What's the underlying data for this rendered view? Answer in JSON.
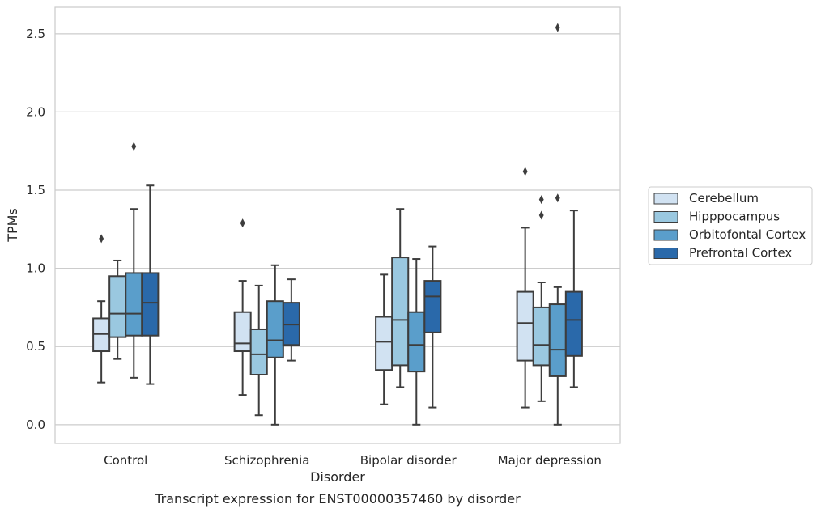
{
  "chart_data": {
    "type": "box",
    "title": "",
    "caption": "Transcript expression for ENST00000357460 by disorder",
    "xlabel": "Disorder",
    "ylabel": "TPMs",
    "ylim": [
      -0.12,
      2.67
    ],
    "yticks": [
      0.0,
      0.5,
      1.0,
      1.5,
      2.0,
      2.5
    ],
    "ytick_labels": [
      "0.0",
      "0.5",
      "1.0",
      "1.5",
      "2.0",
      "2.5"
    ],
    "grid": "horizontal",
    "legend_position": "right",
    "categories": [
      "Control",
      "Schizophrenia",
      "Bipolar disorder",
      "Major depression"
    ],
    "series": [
      {
        "name": "Cerebellum",
        "color": "#d1e2f2",
        "boxes": [
          {
            "whislo": 0.27,
            "q1": 0.47,
            "med": 0.58,
            "q3": 0.68,
            "whishi": 0.79,
            "fliers": [
              1.19
            ]
          },
          {
            "whislo": 0.19,
            "q1": 0.47,
            "med": 0.52,
            "q3": 0.72,
            "whishi": 0.92,
            "fliers": [
              1.29
            ]
          },
          {
            "whislo": 0.13,
            "q1": 0.35,
            "med": 0.53,
            "q3": 0.69,
            "whishi": 0.96,
            "fliers": []
          },
          {
            "whislo": 0.11,
            "q1": 0.41,
            "med": 0.65,
            "q3": 0.85,
            "whishi": 1.26,
            "fliers": [
              1.62
            ]
          }
        ]
      },
      {
        "name": "Hipppocampus",
        "color": "#9ac8e0",
        "boxes": [
          {
            "whislo": 0.42,
            "q1": 0.56,
            "med": 0.71,
            "q3": 0.95,
            "whishi": 1.05,
            "fliers": []
          },
          {
            "whislo": 0.06,
            "q1": 0.32,
            "med": 0.45,
            "q3": 0.61,
            "whishi": 0.89,
            "fliers": []
          },
          {
            "whislo": 0.24,
            "q1": 0.38,
            "med": 0.67,
            "q3": 1.07,
            "whishi": 1.38,
            "fliers": []
          },
          {
            "whislo": 0.15,
            "q1": 0.38,
            "med": 0.51,
            "q3": 0.75,
            "whishi": 0.91,
            "fliers": [
              1.34,
              1.44
            ]
          }
        ]
      },
      {
        "name": "Orbitofontal Cortex",
        "color": "#5a9ecb",
        "boxes": [
          {
            "whislo": 0.3,
            "q1": 0.57,
            "med": 0.71,
            "q3": 0.97,
            "whishi": 1.38,
            "fliers": [
              1.78
            ]
          },
          {
            "whislo": 0.0,
            "q1": 0.43,
            "med": 0.54,
            "q3": 0.79,
            "whishi": 1.02,
            "fliers": []
          },
          {
            "whislo": 0.0,
            "q1": 0.34,
            "med": 0.51,
            "q3": 0.72,
            "whishi": 1.06,
            "fliers": []
          },
          {
            "whislo": 0.0,
            "q1": 0.31,
            "med": 0.48,
            "q3": 0.77,
            "whishi": 0.88,
            "fliers": [
              1.45,
              2.54
            ]
          }
        ]
      },
      {
        "name": "Prefrontal Cortex",
        "color": "#2a69aa",
        "boxes": [
          {
            "whislo": 0.26,
            "q1": 0.57,
            "med": 0.78,
            "q3": 0.97,
            "whishi": 1.53,
            "fliers": []
          },
          {
            "whislo": 0.41,
            "q1": 0.51,
            "med": 0.64,
            "q3": 0.78,
            "whishi": 0.93,
            "fliers": []
          },
          {
            "whislo": 0.11,
            "q1": 0.59,
            "med": 0.82,
            "q3": 0.92,
            "whishi": 1.14,
            "fliers": []
          },
          {
            "whislo": 0.24,
            "q1": 0.44,
            "med": 0.67,
            "q3": 0.85,
            "whishi": 1.37,
            "fliers": []
          }
        ]
      }
    ]
  }
}
